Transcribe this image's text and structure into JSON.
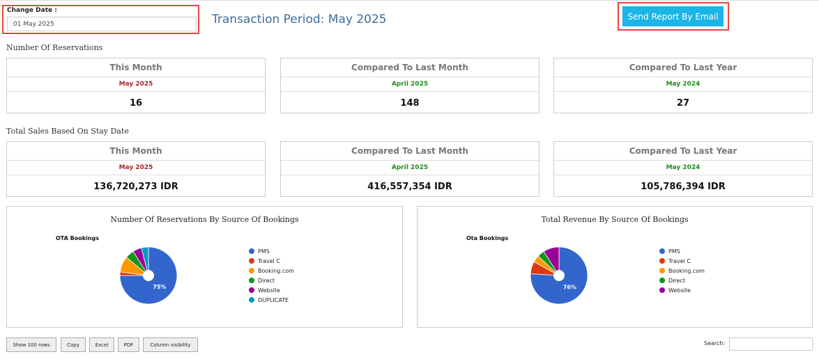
{
  "header": {
    "change_date_label": "Change Date :",
    "change_date_value": "01 May 2025",
    "period_title": "Transaction Period: May 2025",
    "email_button": "Send Report By Email"
  },
  "reservations": {
    "title": "Number Of Reservations",
    "cards": [
      {
        "heading": "This Month",
        "period": "May 2025",
        "value": "16"
      },
      {
        "heading": "Compared To Last Month",
        "period": "April 2025",
        "value": "148"
      },
      {
        "heading": "Compared To Last Year",
        "period": "May 2024",
        "value": "27"
      }
    ]
  },
  "sales": {
    "title": "Total Sales Based On Stay Date",
    "cards": [
      {
        "heading": "This Month",
        "period": "May 2025",
        "value": "136,720,273 IDR"
      },
      {
        "heading": "Compared To Last Month",
        "period": "April 2025",
        "value": "416,557,354 IDR"
      },
      {
        "heading": "Compared To Last Year",
        "period": "May 2024",
        "value": "105,786,394 IDR"
      }
    ]
  },
  "colors": {
    "accent_button": "#1bb5e6",
    "highlight_border": "#e8473f",
    "this_month_period": "#a3282a",
    "comparison_period": "#1e8c1e"
  },
  "chart_data": [
    {
      "type": "pie",
      "title": "Number Of Reservations By Source Of Bookings",
      "subtitle": "OTA Bookings",
      "slices": [
        {
          "label": "PMS",
          "value": 75,
          "color": "#3366cc",
          "data_label": "75%"
        },
        {
          "label": "Travel C",
          "value": 2,
          "color": "#dc3912",
          "data_label": ""
        },
        {
          "label": "Booking.com",
          "value": 9,
          "color": "#ff9900",
          "data_label": ""
        },
        {
          "label": "Direct",
          "value": 5,
          "color": "#109618",
          "data_label": ""
        },
        {
          "label": "Website",
          "value": 5,
          "color": "#990099",
          "data_label": ""
        },
        {
          "label": "DUPLICATE",
          "value": 4,
          "color": "#0099c6",
          "data_label": ""
        }
      ],
      "legend_position": "right"
    },
    {
      "type": "pie",
      "title": "Total Revenue By Source Of Bookings",
      "subtitle": "Ota Bookings",
      "slices": [
        {
          "label": "PMS",
          "value": 76,
          "color": "#3366cc",
          "data_label": "76%"
        },
        {
          "label": "Travel C",
          "value": 7,
          "color": "#dc3912",
          "data_label": ""
        },
        {
          "label": "Booking.com",
          "value": 4,
          "color": "#ff9900",
          "data_label": ""
        },
        {
          "label": "Direct",
          "value": 4,
          "color": "#109618",
          "data_label": ""
        },
        {
          "label": "Website",
          "value": 9,
          "color": "#990099",
          "data_label": ""
        }
      ],
      "legend_position": "right"
    }
  ],
  "table_controls": {
    "buttons": [
      "Show 100 rows",
      "Copy",
      "Excel",
      "PDF",
      "Column visibility"
    ],
    "search_label": "Search:"
  }
}
